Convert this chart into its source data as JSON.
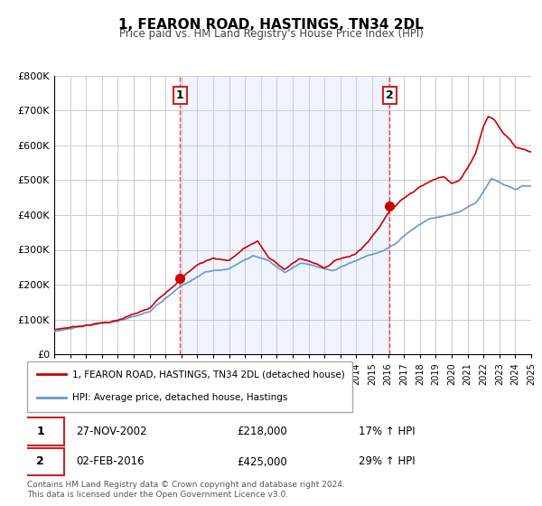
{
  "title": "1, FEARON ROAD, HASTINGS, TN34 2DL",
  "subtitle": "Price paid vs. HM Land Registry's House Price Index (HPI)",
  "hpi_label": "HPI: Average price, detached house, Hastings",
  "price_label": "1, FEARON ROAD, HASTINGS, TN34 2DL (detached house)",
  "legend_footnote1": "Contains HM Land Registry data © Crown copyright and database right 2024.",
  "legend_footnote2": "This data is licensed under the Open Government Licence v3.0.",
  "marker1_date": "27-NOV-2002",
  "marker1_price": "£218,000",
  "marker1_hpi": "17% ↑ HPI",
  "marker1_x": 2002.9,
  "marker1_y": 218000,
  "marker2_date": "02-FEB-2016",
  "marker2_price": "£425,000",
  "marker2_hpi": "29% ↑ HPI",
  "marker2_x": 2016.08,
  "marker2_y": 425000,
  "xmin": 1995,
  "xmax": 2025,
  "ymin": 0,
  "ymax": 800000,
  "yticks": [
    0,
    100000,
    200000,
    300000,
    400000,
    500000,
    600000,
    700000,
    800000
  ],
  "ytick_labels": [
    "£0",
    "£100K",
    "£200K",
    "£300K",
    "£400K",
    "£500K",
    "£600K",
    "£700K",
    "£800K"
  ],
  "price_color": "#cc0000",
  "hpi_color": "#6699cc",
  "vline_color": "#ff4444",
  "bg_color": "#f0f4ff",
  "shaded_start": 2002.9,
  "shaded_end": 2016.08
}
